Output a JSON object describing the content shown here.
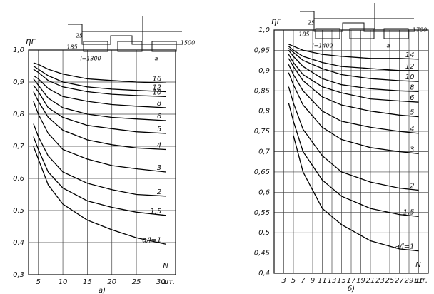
{
  "chart_data": [
    {
      "type": "line",
      "y_label": "ηг",
      "x_label": "N",
      "x_unit": "шт.",
      "caption": "а)",
      "xlim": [
        3,
        33
      ],
      "xticks": [
        5,
        10,
        15,
        20,
        25,
        30
      ],
      "ylim": [
        0.3,
        1.0
      ],
      "yticks": [
        {
          "value": 1.0,
          "label": "1,0"
        },
        {
          "value": 0.9,
          "label": "0,9"
        },
        {
          "value": 0.8,
          "label": "0,8"
        },
        {
          "value": 0.7,
          "label": "0,7"
        },
        {
          "value": 0.6,
          "label": "0,6"
        },
        {
          "value": 0.5,
          "label": "0,5"
        },
        {
          "value": 0.4,
          "label": "0,4"
        },
        {
          "value": 0.3,
          "label": "0,3"
        }
      ],
      "grid": true,
      "annotations": [
        "25",
        "185",
        "1500",
        "l=1300",
        "a"
      ],
      "x": [
        4,
        5,
        7,
        10,
        15,
        20,
        25,
        31
      ],
      "series": [
        {
          "name": "16",
          "color": "#000",
          "values": [
            0.96,
            0.955,
            0.94,
            0.925,
            0.91,
            0.905,
            0.9,
            0.897
          ]
        },
        {
          "name": "12",
          "color": "#000",
          "values": [
            0.95,
            0.94,
            0.92,
            0.9,
            0.885,
            0.878,
            0.874,
            0.87
          ]
        },
        {
          "name": "10",
          "color": "#000",
          "values": [
            0.94,
            0.93,
            0.905,
            0.885,
            0.87,
            0.862,
            0.858,
            0.855
          ]
        },
        {
          "name": "8",
          "color": "#000",
          "values": [
            0.92,
            0.91,
            0.88,
            0.855,
            0.84,
            0.83,
            0.825,
            0.82
          ]
        },
        {
          "name": "6",
          "color": "#000",
          "values": [
            0.91,
            0.89,
            0.85,
            0.82,
            0.8,
            0.79,
            0.785,
            0.78
          ]
        },
        {
          "name": "5",
          "color": "#000",
          "values": [
            0.89,
            0.87,
            0.82,
            0.79,
            0.765,
            0.755,
            0.745,
            0.74
          ]
        },
        {
          "name": "4",
          "color": "#000",
          "values": [
            0.87,
            0.84,
            0.79,
            0.75,
            0.72,
            0.705,
            0.695,
            0.69
          ]
        },
        {
          "name": "3",
          "color": "#000",
          "values": [
            0.84,
            0.8,
            0.74,
            0.69,
            0.66,
            0.64,
            0.63,
            0.62
          ]
        },
        {
          "name": "2",
          "color": "#000",
          "values": [
            0.77,
            0.73,
            0.67,
            0.62,
            0.585,
            0.565,
            0.55,
            0.545
          ]
        },
        {
          "name": "1,5",
          "color": "#000",
          "values": [
            0.73,
            0.69,
            0.62,
            0.57,
            0.53,
            0.51,
            0.495,
            0.485
          ]
        },
        {
          "name": "a/l=1",
          "color": "#000",
          "values": [
            0.7,
            0.66,
            0.58,
            0.52,
            0.47,
            0.44,
            0.415,
            0.395
          ]
        }
      ]
    },
    {
      "type": "line",
      "y_label": "ηг",
      "x_label": "N",
      "x_unit": "шт.",
      "caption": "б)",
      "xlim": [
        1,
        33
      ],
      "xticks": [
        3,
        5,
        7,
        9,
        11,
        13,
        15,
        17,
        19,
        21,
        23,
        25,
        27,
        29,
        31
      ],
      "ylim": [
        0.4,
        1.0
      ],
      "yticks": [
        {
          "value": 1.0,
          "label": "1,0"
        },
        {
          "value": 0.95,
          "label": "0,95"
        },
        {
          "value": 0.9,
          "label": "0,9"
        },
        {
          "value": 0.85,
          "label": "0,85"
        },
        {
          "value": 0.8,
          "label": "0,8"
        },
        {
          "value": 0.75,
          "label": "0,75"
        },
        {
          "value": 0.7,
          "label": "0,7"
        },
        {
          "value": 0.65,
          "label": "0,65"
        },
        {
          "value": 0.6,
          "label": "0,6"
        },
        {
          "value": 0.55,
          "label": "0,55"
        },
        {
          "value": 0.5,
          "label": "0,5"
        },
        {
          "value": 0.45,
          "label": "0,45"
        },
        {
          "value": 0.4,
          "label": "0,4"
        }
      ],
      "grid": true,
      "annotations": [
        "25",
        "185",
        "1700",
        "l=1400",
        "a"
      ],
      "x": [
        4,
        5,
        7,
        11,
        15,
        21,
        27,
        31
      ],
      "series": [
        {
          "name": "14",
          "color": "#000",
          "values": [
            0.965,
            0.96,
            0.95,
            0.94,
            0.935,
            0.93,
            0.93,
            0.928
          ]
        },
        {
          "name": "12",
          "color": "#000",
          "values": [
            0.96,
            0.95,
            0.935,
            0.92,
            0.91,
            0.905,
            0.9,
            0.9
          ]
        },
        {
          "name": "10",
          "color": "#000",
          "values": [
            0.955,
            0.945,
            0.925,
            0.905,
            0.89,
            0.88,
            0.875,
            0.873
          ]
        },
        {
          "name": "8",
          "color": "#000",
          "values": [
            0.95,
            0.935,
            0.91,
            0.88,
            0.865,
            0.855,
            0.85,
            0.848
          ]
        },
        {
          "name": "6",
          "color": "#000",
          "values": [
            0.94,
            0.92,
            0.89,
            0.86,
            0.845,
            0.83,
            0.825,
            0.822
          ]
        },
        {
          "name": "5",
          "color": "#000",
          "values": [
            0.93,
            0.91,
            0.875,
            0.835,
            0.815,
            0.8,
            0.79,
            0.786
          ]
        },
        {
          "name": "4",
          "color": "#000",
          "values": [
            0.915,
            0.89,
            0.85,
            0.8,
            0.775,
            0.76,
            0.75,
            0.745
          ]
        },
        {
          "name": "3",
          "color": "#000",
          "values": [
            0.895,
            0.865,
            0.815,
            0.76,
            0.73,
            0.71,
            0.7,
            0.695
          ]
        },
        {
          "name": "2",
          "color": "#000",
          "values": [
            0.86,
            0.82,
            0.755,
            0.69,
            0.65,
            0.625,
            0.61,
            0.605
          ]
        },
        {
          "name": "1,5",
          "color": "#000",
          "values": [
            0.82,
            0.775,
            0.7,
            0.63,
            0.59,
            0.56,
            0.545,
            0.54
          ]
        },
        {
          "name": "a/l=1",
          "color": "#000",
          "values": [
            null,
            0.74,
            0.65,
            0.56,
            0.52,
            0.48,
            0.46,
            0.455
          ]
        }
      ]
    }
  ]
}
